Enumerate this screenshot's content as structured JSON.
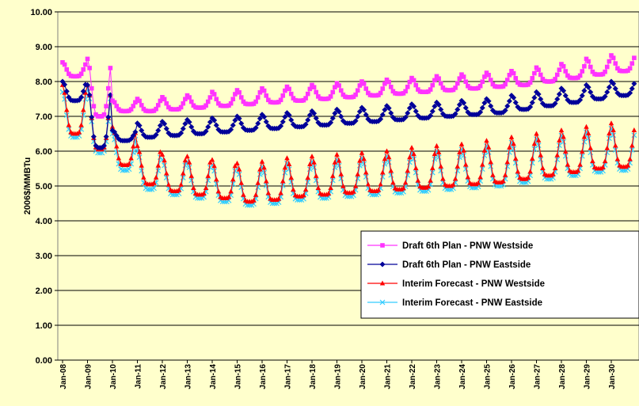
{
  "chart_data": {
    "type": "line",
    "title": "",
    "xlabel": "",
    "ylabel": "2006$/MMBTu",
    "ylim": [
      0,
      10
    ],
    "yticks": [
      "0.00",
      "1.00",
      "2.00",
      "3.00",
      "4.00",
      "5.00",
      "6.00",
      "7.00",
      "8.00",
      "9.00",
      "10.00"
    ],
    "grid": true,
    "legend_position": "bottom-right",
    "x_tick_labels": [
      "Jan-08",
      "Jan-09",
      "Jan-10",
      "Jan-11",
      "Jan-12",
      "Jan-13",
      "Jan-14",
      "Jan-15",
      "Jan-16",
      "Jan-17",
      "Jan-18",
      "Jan-19",
      "Jan-20",
      "Jan-21",
      "Jan-22",
      "Jan-23",
      "Jan-24",
      "Jan-25",
      "Jan-26",
      "Jan-27",
      "Jan-28",
      "Jan-29",
      "Jan-30"
    ],
    "x_start": "Jan-08",
    "frequency": "monthly",
    "series": [
      {
        "name": "Draft 6th Plan - PNW Westside",
        "color": "#ff33ff",
        "marker": "square",
        "annual_base": [
          8.15,
          7.0,
          7.15,
          7.15,
          7.2,
          7.25,
          7.3,
          7.35,
          7.4,
          7.45,
          7.5,
          7.55,
          7.6,
          7.65,
          7.7,
          7.75,
          7.8,
          7.85,
          7.9,
          8.0,
          8.1,
          8.2,
          8.3
        ],
        "annual_peak": [
          8.55,
          8.65,
          7.45,
          7.5,
          7.55,
          7.6,
          7.7,
          7.75,
          7.8,
          7.85,
          7.9,
          7.95,
          8.0,
          8.05,
          8.1,
          8.15,
          8.2,
          8.25,
          8.3,
          8.4,
          8.5,
          8.65,
          8.75
        ]
      },
      {
        "name": "Draft 6th Plan - PNW Eastside",
        "color": "#000099",
        "marker": "diamond",
        "annual_base": [
          7.45,
          6.1,
          6.3,
          6.4,
          6.45,
          6.5,
          6.55,
          6.6,
          6.65,
          6.7,
          6.75,
          6.8,
          6.85,
          6.9,
          6.95,
          7.0,
          7.05,
          7.1,
          7.2,
          7.3,
          7.4,
          7.5,
          7.6
        ],
        "annual_peak": [
          8.0,
          7.9,
          6.6,
          6.8,
          6.85,
          6.9,
          6.95,
          7.0,
          7.05,
          7.1,
          7.15,
          7.2,
          7.25,
          7.3,
          7.35,
          7.4,
          7.45,
          7.5,
          7.6,
          7.7,
          7.8,
          7.9,
          8.0
        ]
      },
      {
        "name": "Interim Forecast - PNW Westside",
        "color": "#ff0000",
        "marker": "triangle",
        "annual_base": [
          6.5,
          6.05,
          5.6,
          5.05,
          4.85,
          4.75,
          4.65,
          4.55,
          4.6,
          4.7,
          4.75,
          4.8,
          4.85,
          4.9,
          4.95,
          5.0,
          5.05,
          5.1,
          5.2,
          5.3,
          5.4,
          5.5,
          5.55
        ],
        "annual_peak": [
          7.9,
          7.9,
          6.7,
          6.15,
          5.9,
          5.85,
          5.75,
          5.65,
          5.7,
          5.8,
          5.85,
          5.9,
          5.95,
          6.0,
          6.1,
          6.15,
          6.2,
          6.3,
          6.4,
          6.5,
          6.6,
          6.7,
          6.8
        ]
      },
      {
        "name": "Interim Forecast - PNW Eastside",
        "color": "#33ccff",
        "marker": "x",
        "annual_base": [
          6.4,
          5.95,
          5.45,
          4.9,
          4.75,
          4.65,
          4.55,
          4.45,
          4.5,
          4.6,
          4.65,
          4.7,
          4.75,
          4.8,
          4.85,
          4.9,
          4.95,
          5.0,
          5.1,
          5.2,
          5.3,
          5.4,
          5.45
        ],
        "annual_peak": [
          7.7,
          7.8,
          6.5,
          6.0,
          5.75,
          5.7,
          5.6,
          5.5,
          5.55,
          5.65,
          5.7,
          5.75,
          5.8,
          5.85,
          5.95,
          6.0,
          6.05,
          6.15,
          6.25,
          6.35,
          6.45,
          6.55,
          6.65
        ]
      }
    ]
  }
}
